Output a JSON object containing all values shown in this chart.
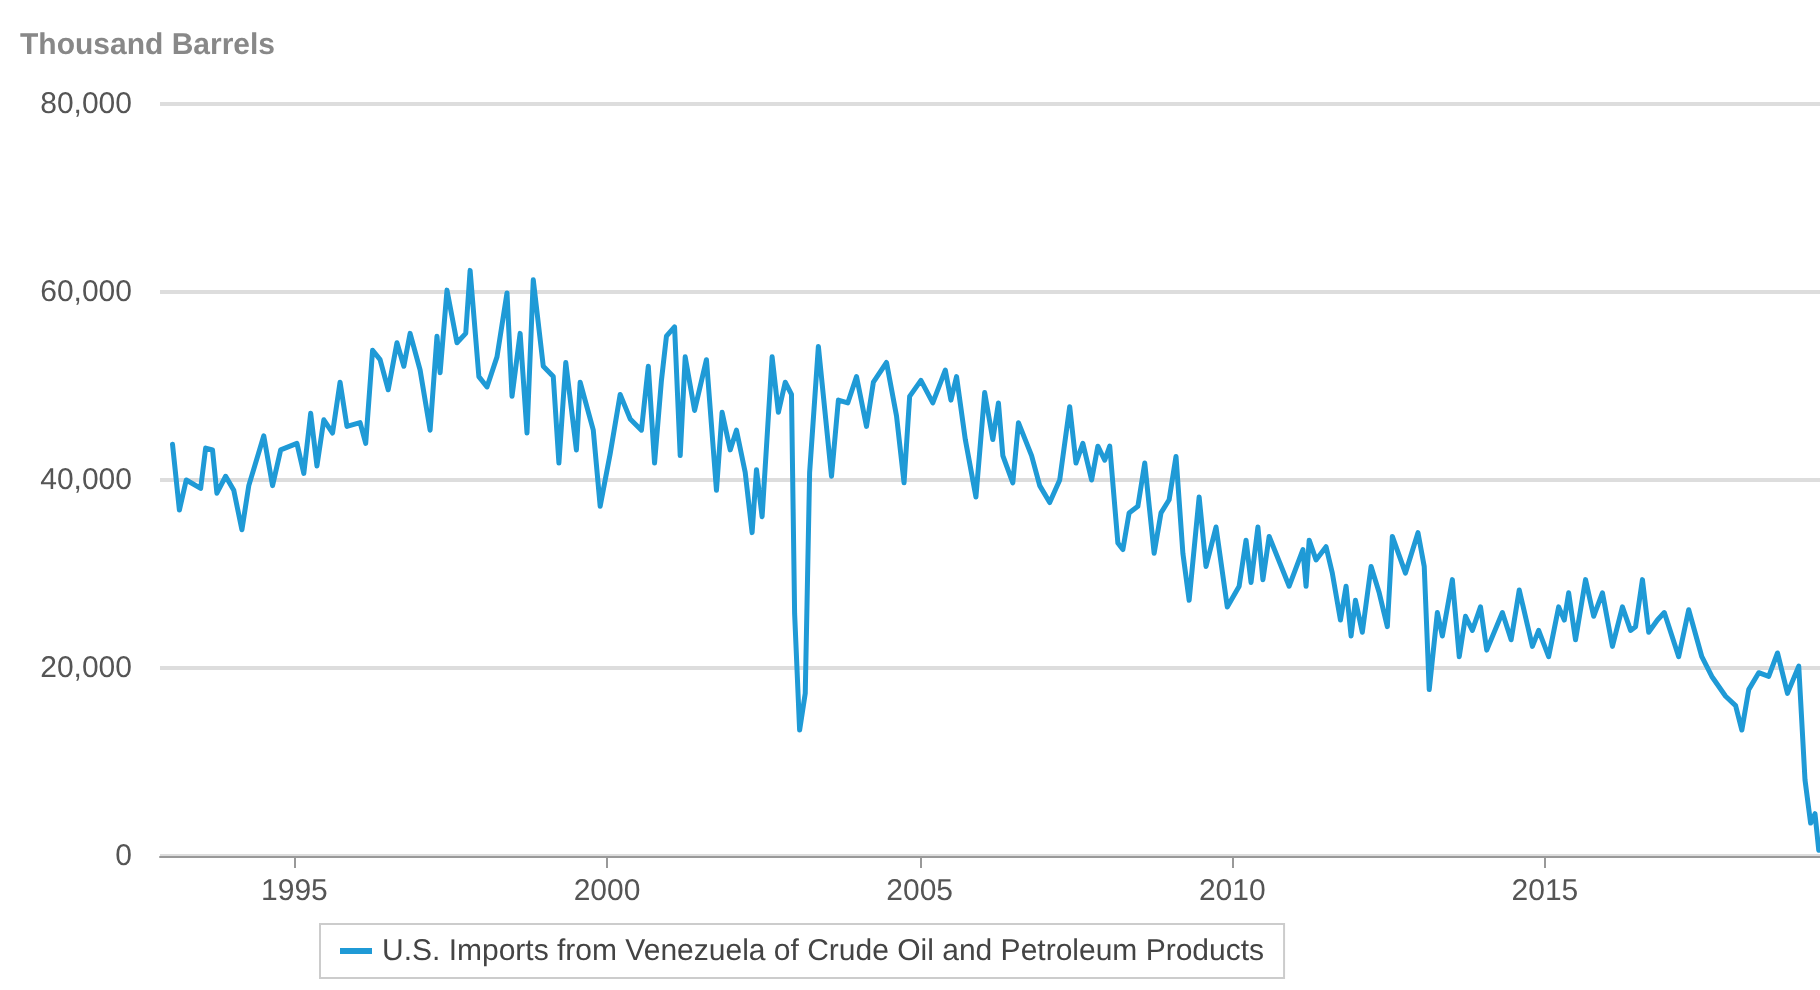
{
  "chart_data": {
    "type": "line",
    "ylabel": "Thousand Barrels",
    "legend": "bottom",
    "grid": "y",
    "marker": "none",
    "line_style": "solid",
    "xlim": [
      1992.85,
      2019.4
    ],
    "xticks": [
      1995,
      2000,
      2005,
      2010,
      2015
    ],
    "ylim": [
      0,
      80000
    ],
    "yticks": [
      0,
      {
        "value": 20000,
        "label": "20,000"
      },
      {
        "value": 40000,
        "label": "40,000"
      },
      {
        "value": 60000,
        "label": "60,000"
      },
      {
        "value": 80000,
        "label": "80,000"
      }
    ],
    "series": [
      {
        "name": "U.S. Imports from Venezuela of Crude Oil and Petroleum Products",
        "color": "#1f9ad6",
        "x": [
          1993.05,
          1993.16,
          1993.27,
          1993.5,
          1993.58,
          1993.69,
          1993.76,
          1993.9,
          1994.03,
          1994.16,
          1994.27,
          1994.51,
          1994.65,
          1994.78,
          1995.04,
          1995.15,
          1995.26,
          1995.36,
          1995.47,
          1995.61,
          1995.73,
          1995.84,
          1996.05,
          1996.14,
          1996.25,
          1996.37,
          1996.5,
          1996.64,
          1996.75,
          1996.85,
          1997.01,
          1997.17,
          1997.28,
          1997.33,
          1997.44,
          1997.6,
          1997.74,
          1997.81,
          1997.95,
          1998.08,
          1998.24,
          1998.4,
          1998.48,
          1998.61,
          1998.72,
          1998.82,
          1998.98,
          1999.14,
          1999.23,
          1999.34,
          1999.51,
          1999.57,
          1999.78,
          1999.89,
          2000.05,
          2000.21,
          2000.37,
          2000.55,
          2000.66,
          2000.76,
          2000.87,
          2000.95,
          2001.08,
          2001.17,
          2001.25,
          2001.4,
          2001.59,
          2001.75,
          2001.84,
          2001.97,
          2002.07,
          2002.21,
          2002.32,
          2002.39,
          2002.48,
          2002.64,
          2002.74,
          2002.85,
          2002.95,
          2003.0,
          2003.08,
          2003.17,
          2003.24,
          2003.38,
          2003.59,
          2003.7,
          2003.85,
          2003.99,
          2004.15,
          2004.26,
          2004.47,
          2004.63,
          2004.75,
          2004.84,
          2005.02,
          2005.21,
          2005.41,
          2005.5,
          2005.59,
          2005.73,
          2005.9,
          2006.04,
          2006.17,
          2006.26,
          2006.33,
          2006.49,
          2006.58,
          2006.79,
          2006.92,
          2007.08,
          2007.24,
          2007.4,
          2007.5,
          2007.61,
          2007.75,
          2007.85,
          2007.96,
          2008.04,
          2008.17,
          2008.25,
          2008.35,
          2008.49,
          2008.6,
          2008.75,
          2008.86,
          2008.99,
          2009.1,
          2009.21,
          2009.31,
          2009.47,
          2009.58,
          2009.74,
          2009.92,
          2010.11,
          2010.22,
          2010.3,
          2010.41,
          2010.49,
          2010.59,
          2010.91,
          2011.13,
          2011.18,
          2011.23,
          2011.34,
          2011.5,
          2011.6,
          2011.73,
          2011.82,
          2011.9,
          2011.97,
          2012.08,
          2012.22,
          2012.35,
          2012.48,
          2012.56,
          2012.77,
          2012.97,
          2013.07,
          2013.15,
          2013.28,
          2013.36,
          2013.52,
          2013.63,
          2013.73,
          2013.84,
          2013.97,
          2014.07,
          2014.32,
          2014.46,
          2014.59,
          2014.8,
          2014.9,
          2015.06,
          2015.22,
          2015.31,
          2015.38,
          2015.49,
          2015.65,
          2015.78,
          2015.92,
          2016.08,
          2016.24,
          2016.37,
          2016.45,
          2016.56,
          2016.66,
          2016.8,
          2016.91,
          2017.14,
          2017.3,
          2017.51,
          2017.67,
          2017.89,
          2018.05,
          2018.15,
          2018.26,
          2018.42,
          2018.58,
          2018.72,
          2018.88,
          2019.06,
          2019.16,
          2019.25,
          2019.32,
          2019.38
        ],
        "values": [
          43800,
          36800,
          40000,
          39100,
          43400,
          43200,
          38600,
          40400,
          38900,
          34700,
          39400,
          44700,
          39400,
          43200,
          43900,
          40700,
          47100,
          41500,
          46400,
          45000,
          50400,
          45700,
          46100,
          43900,
          53800,
          52800,
          49600,
          54600,
          52100,
          55600,
          51700,
          45300,
          55300,
          51400,
          60200,
          54600,
          55600,
          62300,
          51000,
          49900,
          53100,
          59900,
          48900,
          55600,
          45000,
          61300,
          52100,
          51000,
          41800,
          52500,
          43200,
          50400,
          45300,
          37200,
          42800,
          49100,
          46500,
          45300,
          52100,
          41800,
          50600,
          55300,
          56300,
          42600,
          53100,
          47400,
          52800,
          38900,
          47200,
          43200,
          45300,
          40800,
          34400,
          41100,
          36100,
          53100,
          47200,
          50400,
          49100,
          25800,
          13400,
          17300,
          40800,
          54200,
          40400,
          48500,
          48200,
          51000,
          45700,
          50400,
          52500,
          46800,
          39700,
          48900,
          50600,
          48200,
          51700,
          48500,
          51000,
          44300,
          38200,
          49300,
          44300,
          48200,
          42600,
          39700,
          46100,
          42600,
          39400,
          37600,
          40000,
          47800,
          41800,
          43900,
          40000,
          43600,
          42100,
          43600,
          33300,
          32600,
          36500,
          37200,
          41800,
          32200,
          36500,
          37900,
          42500,
          32200,
          27200,
          38200,
          30800,
          35000,
          26500,
          28700,
          33600,
          29100,
          35000,
          29400,
          34000,
          28700,
          32600,
          28700,
          33600,
          31500,
          32900,
          30100,
          25100,
          28700,
          23400,
          27200,
          23800,
          30800,
          28000,
          24400,
          34000,
          30100,
          34400,
          30800,
          17700,
          25900,
          23400,
          29400,
          21200,
          25500,
          24000,
          26500,
          21900,
          25900,
          23000,
          28300,
          22300,
          24000,
          21200,
          26500,
          25100,
          28000,
          23000,
          29400,
          25500,
          28000,
          22300,
          26500,
          24000,
          24400,
          29400,
          23800,
          25100,
          25900,
          21200,
          26200,
          21200,
          19100,
          17000,
          16000,
          13400,
          17700,
          19500,
          19100,
          21600,
          17300,
          20200,
          8100,
          3500,
          4500,
          600
        ]
      }
    ]
  }
}
